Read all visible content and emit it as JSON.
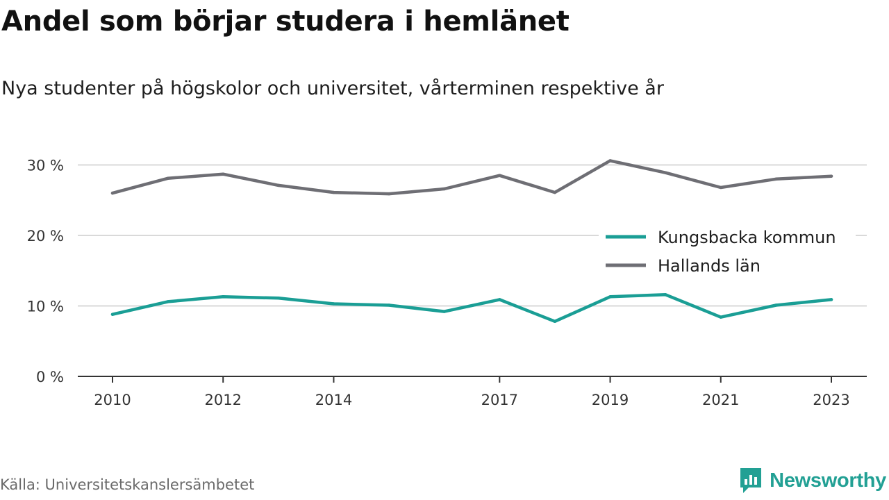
{
  "header": {
    "title": "Andel som börjar studera i hemlänet",
    "subtitle": "Nya studenter på högskolor och universitet, vårterminen respektive år"
  },
  "footer": {
    "source": "Källa: Universitetskanslersämbetet",
    "brand": "Newsworthy"
  },
  "colors": {
    "kungsbacka": "#1a9e95",
    "halland": "#6e6e74",
    "brand": "#22a094",
    "grid": "#d9d9d9",
    "axis": "#333333"
  },
  "chart_data": {
    "type": "line",
    "title": "Andel som börjar studera i hemlänet",
    "subtitle": "Nya studenter på högskolor och universitet, vårterminen respektive år",
    "x": [
      2010,
      2011,
      2012,
      2013,
      2014,
      2015,
      2016,
      2017,
      2018,
      2019,
      2020,
      2021,
      2022,
      2023
    ],
    "x_ticks": [
      2010,
      2012,
      2014,
      2017,
      2019,
      2021,
      2023
    ],
    "x_tick_labels": [
      "2010",
      "2012",
      "2014",
      "2017",
      "2019",
      "2021",
      "2023"
    ],
    "y_ticks": [
      0,
      10,
      20,
      30
    ],
    "y_tick_labels": [
      "0 %",
      "10 %",
      "20 %",
      "30 %"
    ],
    "ylim": [
      0,
      31
    ],
    "grid": true,
    "legend": "right",
    "series": [
      {
        "name": "Kungsbacka kommun",
        "color": "#1a9e95",
        "values": [
          8.8,
          10.6,
          11.3,
          11.1,
          10.3,
          10.1,
          9.2,
          10.9,
          7.8,
          11.3,
          11.6,
          8.4,
          10.1,
          10.9
        ]
      },
      {
        "name": "Hallands län",
        "color": "#6e6e74",
        "values": [
          26.0,
          28.1,
          28.7,
          27.1,
          26.1,
          25.9,
          26.6,
          28.5,
          26.1,
          30.6,
          28.9,
          26.8,
          28.0,
          28.4
        ]
      }
    ]
  }
}
